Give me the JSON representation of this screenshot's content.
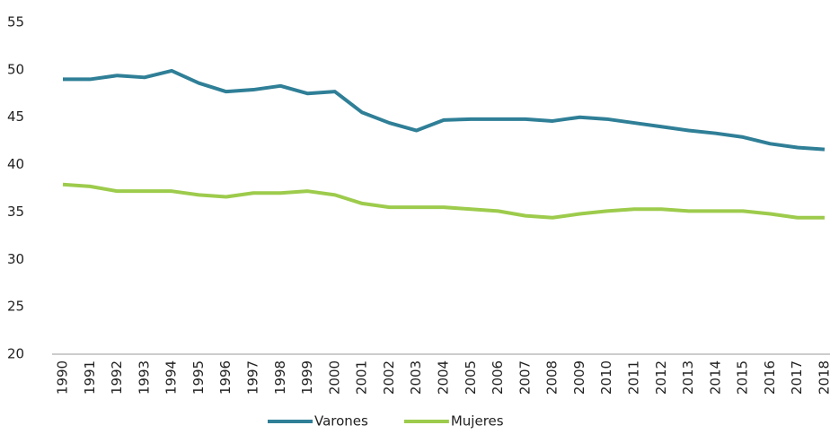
{
  "chart_data": {
    "type": "line",
    "categories": [
      "1990",
      "1991",
      "1992",
      "1993",
      "1994",
      "1995",
      "1996",
      "1997",
      "1998",
      "1999",
      "2000",
      "2001",
      "2002",
      "2003",
      "2004",
      "2005",
      "2006",
      "2007",
      "2008",
      "2009",
      "2010",
      "2011",
      "2012",
      "2013",
      "2014",
      "2015",
      "2016",
      "2017",
      "2018"
    ],
    "series": [
      {
        "name": "Varones",
        "color": "#2f7f97",
        "values": [
          49.0,
          49.0,
          49.4,
          49.2,
          49.9,
          48.6,
          47.7,
          47.9,
          48.3,
          47.5,
          47.7,
          45.5,
          44.4,
          43.6,
          44.7,
          44.8,
          44.8,
          44.8,
          44.6,
          45.0,
          44.8,
          44.4,
          44.0,
          43.6,
          43.3,
          42.9,
          42.2,
          41.8,
          41.6
        ]
      },
      {
        "name": "Mujeres",
        "color": "#9dcb4c",
        "values": [
          37.9,
          37.7,
          37.2,
          37.2,
          37.2,
          36.8,
          36.6,
          37.0,
          37.0,
          37.2,
          36.8,
          35.9,
          35.5,
          35.5,
          35.5,
          35.3,
          35.1,
          34.6,
          34.4,
          34.8,
          35.1,
          35.3,
          35.3,
          35.1,
          35.1,
          35.1,
          34.8,
          34.4,
          34.4
        ]
      }
    ],
    "ylim": [
      20,
      55
    ],
    "yticks": [
      20,
      25,
      30,
      35,
      40,
      45,
      50,
      55
    ],
    "grid": false,
    "legend": "bottom"
  }
}
